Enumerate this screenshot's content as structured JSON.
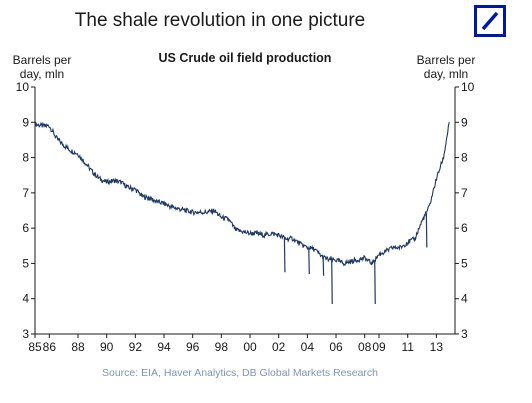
{
  "header": {
    "headline": "The shale revolution in one picture",
    "logo_icon": "deutsche-bank-logo-icon",
    "logo_color": "#0018a8"
  },
  "chart_data": {
    "type": "line",
    "title": "US Crude oil field production",
    "ylabel_left": "Barrels per day, mln",
    "ylabel_right": "Barrels per day, mln",
    "ylim": [
      3,
      10
    ],
    "xlim": [
      1985,
      2014.3
    ],
    "yticks": [
      3,
      4,
      5,
      6,
      7,
      8,
      9,
      10
    ],
    "xticks": [
      {
        "x": 1985,
        "label": "85"
      },
      {
        "x": 1986,
        "label": "86"
      },
      {
        "x": 1988,
        "label": "88"
      },
      {
        "x": 1990,
        "label": "90"
      },
      {
        "x": 1992,
        "label": "92"
      },
      {
        "x": 1994,
        "label": "94"
      },
      {
        "x": 1996,
        "label": "96"
      },
      {
        "x": 1998,
        "label": "98"
      },
      {
        "x": 2000,
        "label": "00"
      },
      {
        "x": 2002,
        "label": "02"
      },
      {
        "x": 2004,
        "label": "04"
      },
      {
        "x": 2006,
        "label": "06"
      },
      {
        "x": 2008,
        "label": "08"
      },
      {
        "x": 2009,
        "label": "09"
      },
      {
        "x": 2011,
        "label": "11"
      },
      {
        "x": 2013,
        "label": "13"
      }
    ],
    "grid": false,
    "line_color": "#1f3864",
    "series": [
      {
        "x": [
          1985.0,
          1985.5,
          1986.0,
          1986.5,
          1987.0,
          1987.5,
          1988.0,
          1988.5,
          1989.0,
          1989.5,
          1990.0,
          1990.5,
          1991.0,
          1991.5,
          1992.0,
          1992.5,
          1993.0,
          1993.5,
          1994.0,
          1994.5,
          1995.0,
          1995.5,
          1996.0,
          1996.5,
          1997.0,
          1997.5,
          1998.0,
          1998.5,
          1999.0,
          1999.5,
          2000.0,
          2000.5,
          2001.0,
          2001.5,
          2002.0,
          2002.5,
          2003.0,
          2003.5,
          2004.0,
          2004.5,
          2005.0,
          2005.5,
          2006.0,
          2006.5,
          2007.0,
          2007.5,
          2008.0,
          2008.5,
          2009.0,
          2009.5,
          2010.0,
          2010.5,
          2011.0,
          2011.5,
          2012.0,
          2012.5,
          2013.0,
          2013.5,
          2013.9
        ],
        "y": [
          8.95,
          8.9,
          8.9,
          8.55,
          8.35,
          8.2,
          8.1,
          7.85,
          7.6,
          7.4,
          7.3,
          7.35,
          7.3,
          7.15,
          7.1,
          6.9,
          6.85,
          6.75,
          6.7,
          6.6,
          6.55,
          6.5,
          6.45,
          6.45,
          6.45,
          6.5,
          6.3,
          6.25,
          5.95,
          5.9,
          5.85,
          5.85,
          5.8,
          5.85,
          5.8,
          5.7,
          5.7,
          5.55,
          5.45,
          5.4,
          5.2,
          5.1,
          5.1,
          5.0,
          5.05,
          5.1,
          5.15,
          5.0,
          5.25,
          5.35,
          5.45,
          5.45,
          5.6,
          5.7,
          6.2,
          6.6,
          7.4,
          8.0,
          9.0
        ]
      }
    ],
    "annotations": [
      {
        "x": 2002.4,
        "y": 4.75
      },
      {
        "x": 2004.1,
        "y": 4.7
      },
      {
        "x": 2005.1,
        "y": 4.65
      },
      {
        "x": 2005.7,
        "y": 3.85
      },
      {
        "x": 2008.7,
        "y": 3.85
      },
      {
        "x": 2010.4,
        "y": 5.45
      },
      {
        "x": 2012.3,
        "y": 5.45
      }
    ],
    "source": "Source: EIA, Haver Analytics, DB Global Markets Research"
  }
}
